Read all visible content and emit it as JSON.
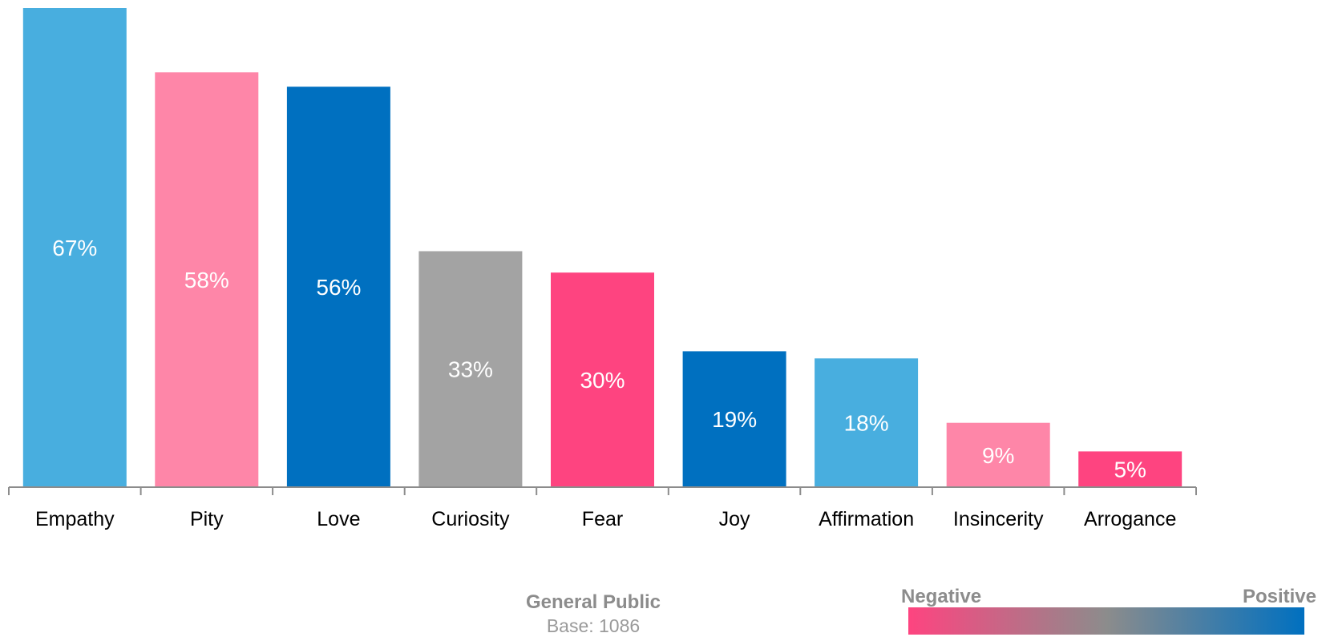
{
  "chart_data": {
    "type": "bar",
    "categories": [
      "Empathy",
      "Pity",
      "Love",
      "Curiosity",
      "Fear",
      "Joy",
      "Affirmation",
      "Insincerity",
      "Arrogance"
    ],
    "values": [
      67,
      58,
      56,
      33,
      30,
      19,
      18,
      9,
      5
    ],
    "value_labels": [
      "67%",
      "58%",
      "56%",
      "33%",
      "30%",
      "19%",
      "18%",
      "9%",
      "5%"
    ],
    "bar_colors": [
      "#48aedf",
      "#fe86a8",
      "#0070c0",
      "#a3a3a3",
      "#fe4480",
      "#0070c0",
      "#48aedf",
      "#fe86a8",
      "#fe4480"
    ],
    "ylim": [
      0,
      67
    ],
    "grid": false,
    "value_label_color": "#ffffff",
    "axis_color": "#8c8c8c"
  },
  "footer": {
    "title": "General Public",
    "base": "Base: 1086"
  },
  "legend": {
    "negative_label": "Negative",
    "positive_label": "Positive",
    "gradient_colors": [
      "#fe4480",
      "#8c8c8c",
      "#0070c0"
    ]
  }
}
